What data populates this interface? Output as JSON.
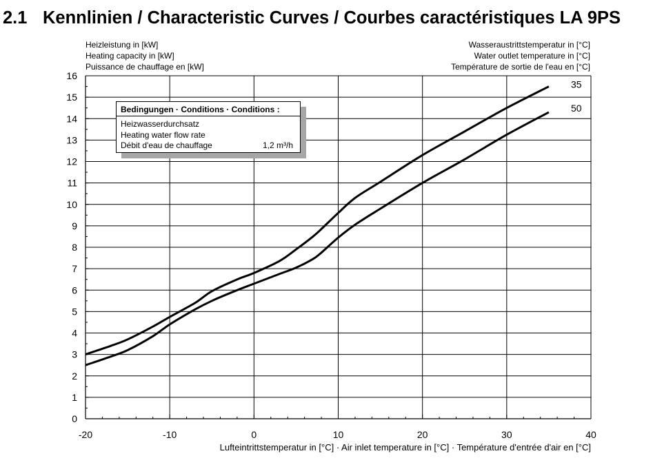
{
  "title": {
    "number": "2.1",
    "text": "Kennlinien / Characteristic Curves / Courbes caractéristiques LA 9PS"
  },
  "y_axis_title": {
    "line1": "Heizleistung in [kW]",
    "line2": "Heating capacity in [kW]",
    "line3": "Puissance de chauffage en [kW]"
  },
  "y2_axis_title": {
    "line1": "Wasseraustrittstemperatur in [°C]",
    "line2": "Water outlet temperature in [°C]",
    "line3": "Température de sortie de l'eau en [°C]"
  },
  "x_axis_title": "Lufteintrittstemperatur in [°C] · Air inlet temperature in [°C] · Température d'entrée d'air en [°C]",
  "conditions": {
    "header": "Bedingungen · Conditions · Conditions :",
    "line1": "Heizwasserdurchsatz",
    "line2": "Heating water flow rate",
    "line3": "Débit d'eau de chauffage",
    "value": "1,2 m³/h"
  },
  "chart_data": {
    "type": "line",
    "xlim": [
      -20,
      40
    ],
    "ylim": [
      0,
      16
    ],
    "x_ticks": [
      -20,
      -10,
      0,
      10,
      20,
      30,
      40
    ],
    "y_ticks": [
      0,
      1,
      2,
      3,
      4,
      5,
      6,
      7,
      8,
      9,
      10,
      11,
      12,
      13,
      14,
      15,
      16
    ],
    "grid": true,
    "series": [
      {
        "name": "35",
        "x": [
          -20,
          -17,
          -15,
          -12,
          -10,
          -7,
          -5,
          -2,
          0,
          3,
          5,
          7,
          8,
          10,
          12,
          15,
          20,
          25,
          30,
          35
        ],
        "y": [
          3.0,
          3.4,
          3.7,
          4.3,
          4.75,
          5.4,
          5.95,
          6.5,
          6.8,
          7.35,
          7.9,
          8.5,
          8.85,
          9.6,
          10.3,
          11.05,
          12.3,
          13.4,
          14.5,
          15.5
        ]
      },
      {
        "name": "50",
        "x": [
          -20,
          -17,
          -15,
          -12,
          -10,
          -7,
          -5,
          -2,
          0,
          3,
          5,
          7,
          8,
          10,
          12,
          15,
          20,
          25,
          30,
          35
        ],
        "y": [
          2.5,
          2.9,
          3.2,
          3.85,
          4.4,
          5.1,
          5.5,
          6.0,
          6.3,
          6.75,
          7.05,
          7.45,
          7.75,
          8.45,
          9.05,
          9.8,
          11.0,
          12.1,
          13.25,
          14.3
        ]
      }
    ]
  }
}
